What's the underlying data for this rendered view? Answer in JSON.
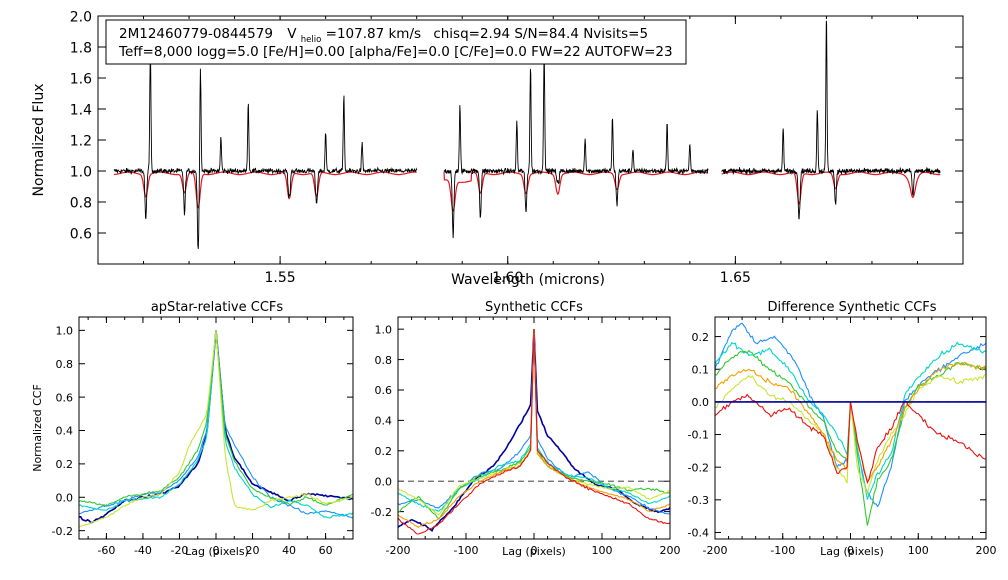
{
  "figure": {
    "header_line1": {
      "star": "2M12460779-0844579",
      "vhelio_label": "V",
      "vhelio_sub": "helio",
      "vhelio_value": "=107.87 km/s",
      "stats": "chisq=2.94  S/N=84.4  Nvisits=5"
    },
    "header_line2": "Teff=8,000 logg=5.0 [Fe/H]=0.00 [alpha/Fe]=0.0 [C/Fe]=0.0 FW=22 AUTOFW=23"
  },
  "colors": {
    "observed": "#000000",
    "model": "#e8141e",
    "visits": [
      "#0000a0",
      "#1e90ff",
      "#00d7c8",
      "#32c832",
      "#c8e632",
      "#f5a000",
      "#e81414"
    ],
    "dashed": "#666666"
  },
  "chart_data": [
    {
      "id": "spectrum",
      "type": "line",
      "title": "",
      "xlabel": "Wavelength (microns)",
      "ylabel": "Normalized Flux",
      "xlim": [
        1.51,
        1.7
      ],
      "ylim": [
        0.4,
        2.0
      ],
      "xticks": [
        1.55,
        1.6,
        1.65
      ],
      "xtick_labels": [
        "1.55",
        "1.60",
        "1.65"
      ],
      "yticks": [
        0.6,
        0.8,
        1.0,
        1.2,
        1.4,
        1.6,
        1.8,
        2.0
      ],
      "ytick_labels": [
        "0.6",
        "0.8",
        "1.0",
        "1.2",
        "1.4",
        "1.6",
        "1.8",
        "2.0"
      ],
      "chips": [
        [
          1.5135,
          1.58
        ],
        [
          1.586,
          1.644
        ],
        [
          1.647,
          1.695
        ]
      ],
      "series": [
        {
          "name": "observed",
          "baseline": 1.0
        },
        {
          "name": "model",
          "baseline": 0.985
        }
      ],
      "emission_lines": [
        [
          1.5215,
          1.8
        ],
        [
          1.5325,
          1.68
        ],
        [
          1.537,
          1.22
        ],
        [
          1.543,
          1.45
        ],
        [
          1.552,
          1.22
        ],
        [
          1.558,
          1.15
        ],
        [
          1.56,
          1.25
        ],
        [
          1.564,
          1.5
        ],
        [
          1.568,
          1.18
        ],
        [
          1.5895,
          1.42
        ],
        [
          1.602,
          1.32
        ],
        [
          1.605,
          1.68
        ],
        [
          1.608,
          1.8
        ],
        [
          1.611,
          1.23
        ],
        [
          1.617,
          1.22
        ],
        [
          1.623,
          1.35
        ],
        [
          1.6275,
          1.15
        ],
        [
          1.635,
          1.32
        ],
        [
          1.64,
          1.18
        ],
        [
          1.6605,
          1.28
        ],
        [
          1.664,
          1.15
        ],
        [
          1.668,
          1.4
        ],
        [
          1.67,
          2.0
        ]
      ],
      "absorption_lines": [
        [
          1.532,
          0.5
        ],
        [
          1.5205,
          0.68
        ],
        [
          1.529,
          0.72
        ],
        [
          1.552,
          0.62
        ],
        [
          1.558,
          0.65
        ],
        [
          1.588,
          0.57
        ],
        [
          1.594,
          0.7
        ],
        [
          1.604,
          0.73
        ],
        [
          1.611,
          0.72
        ],
        [
          1.624,
          0.78
        ],
        [
          1.664,
          0.55
        ],
        [
          1.672,
          0.78
        ],
        [
          1.689,
          0.84
        ]
      ]
    },
    {
      "id": "apstar_ccf",
      "type": "line",
      "title": "apStar-relative CCFs",
      "xlabel": "Lag (pixels)",
      "ylabel": "Normalized CCF",
      "xlim": [
        -75,
        75
      ],
      "ylim": [
        -0.25,
        1.08
      ],
      "xticks": [
        -60,
        -40,
        -20,
        0,
        20,
        40,
        60
      ],
      "xtick_labels": [
        "-60",
        "-40",
        "-20",
        "0",
        "20",
        "40",
        "60"
      ],
      "yticks": [
        -0.2,
        0.0,
        0.2,
        0.4,
        0.6,
        0.8,
        1.0
      ],
      "ytick_labels": [
        "-0.2",
        "0.0",
        "0.2",
        "0.4",
        "0.6",
        "0.8",
        "1.0"
      ],
      "series": [
        {
          "name": "visit 1",
          "color": "#0000a0",
          "x": [
            -75,
            -68,
            -60,
            -50,
            -40,
            -30,
            -20,
            -10,
            -5,
            0,
            5,
            10,
            20,
            30,
            40,
            50,
            60,
            75
          ],
          "y": [
            -0.12,
            -0.15,
            -0.1,
            -0.02,
            0.0,
            0.02,
            0.07,
            0.2,
            0.38,
            1.0,
            0.4,
            0.24,
            0.08,
            0.03,
            -0.02,
            0.02,
            0.01,
            -0.01
          ]
        },
        {
          "name": "visit 2",
          "color": "#1e90ff",
          "x": [
            -75,
            -60,
            -50,
            -40,
            -30,
            -20,
            -10,
            -5,
            0,
            5,
            10,
            20,
            30,
            40,
            50,
            60,
            75
          ],
          "y": [
            -0.1,
            -0.05,
            -0.02,
            0.02,
            0.03,
            0.1,
            0.24,
            0.4,
            1.0,
            0.42,
            0.32,
            0.12,
            0.0,
            -0.05,
            -0.1,
            -0.08,
            -0.12
          ]
        },
        {
          "name": "visit 3",
          "color": "#00d7c8",
          "x": [
            -75,
            -60,
            -50,
            -40,
            -30,
            -20,
            -10,
            -5,
            0,
            5,
            10,
            20,
            30,
            40,
            50,
            60,
            75
          ],
          "y": [
            -0.05,
            -0.08,
            -0.02,
            -0.01,
            0.0,
            0.08,
            0.22,
            0.36,
            1.0,
            0.34,
            0.18,
            0.02,
            -0.06,
            -0.02,
            -0.05,
            -0.12,
            -0.1
          ]
        },
        {
          "name": "visit 4",
          "color": "#32c832",
          "x": [
            -75,
            -60,
            -50,
            -40,
            -30,
            -20,
            -10,
            -5,
            0,
            5,
            10,
            20,
            30,
            40,
            50,
            60,
            75
          ],
          "y": [
            -0.02,
            -0.05,
            0.0,
            0.02,
            0.04,
            0.12,
            0.28,
            0.45,
            1.0,
            0.38,
            0.22,
            0.05,
            0.0,
            -0.04,
            0.0,
            -0.05,
            0.02
          ]
        },
        {
          "name": "visit 5",
          "color": "#c8e632",
          "x": [
            -75,
            -60,
            -50,
            -40,
            -30,
            -20,
            -15,
            -10,
            -5,
            0,
            5,
            10,
            20,
            30,
            40,
            50,
            60,
            75
          ],
          "y": [
            -0.18,
            -0.12,
            -0.05,
            0.0,
            0.02,
            0.15,
            0.3,
            0.4,
            0.5,
            1.0,
            0.25,
            -0.05,
            -0.08,
            -0.02,
            0.0,
            0.02,
            -0.04,
            0.0
          ]
        }
      ]
    },
    {
      "id": "synthetic_ccf",
      "type": "line",
      "title": "Synthetic CCFs",
      "xlabel": "Lag (pixels)",
      "ylabel": "",
      "xlim": [
        -200,
        200
      ],
      "ylim": [
        -0.38,
        1.08
      ],
      "xticks": [
        -200,
        -100,
        0,
        100,
        200
      ],
      "xtick_labels": [
        "-200",
        "-100",
        "0",
        "100",
        "200"
      ],
      "yticks": [
        -0.2,
        0.0,
        0.2,
        0.4,
        0.6,
        0.8,
        1.0
      ],
      "ytick_labels": [
        "-0.2",
        "0.0",
        "0.2",
        "0.4",
        "0.6",
        "0.8",
        "1.0"
      ],
      "reference_line": 0.0,
      "series": [
        {
          "name": "visit 1",
          "color": "#0000a0",
          "x": [
            -200,
            -180,
            -150,
            -120,
            -90,
            -60,
            -40,
            -20,
            -5,
            0,
            5,
            20,
            40,
            60,
            90,
            120,
            150,
            180,
            200
          ],
          "y": [
            -0.3,
            -0.25,
            -0.32,
            -0.18,
            0.0,
            0.1,
            0.22,
            0.38,
            0.5,
            1.0,
            0.46,
            0.3,
            0.2,
            0.08,
            -0.02,
            -0.05,
            -0.15,
            -0.2,
            -0.18
          ]
        },
        {
          "name": "visit 2",
          "color": "#1e90ff",
          "x": [
            -200,
            -170,
            -140,
            -110,
            -80,
            -50,
            -20,
            -5,
            0,
            5,
            20,
            50,
            80,
            110,
            140,
            170,
            200
          ],
          "y": [
            -0.15,
            -0.12,
            -0.18,
            -0.05,
            0.05,
            0.08,
            0.2,
            0.3,
            1.0,
            0.28,
            0.15,
            0.02,
            0.06,
            -0.05,
            -0.1,
            -0.18,
            -0.22
          ]
        },
        {
          "name": "visit 3",
          "color": "#00d7c8",
          "x": [
            -200,
            -170,
            -140,
            -110,
            -80,
            -50,
            -20,
            -5,
            0,
            5,
            20,
            50,
            80,
            110,
            140,
            170,
            200
          ],
          "y": [
            -0.08,
            -0.15,
            -0.2,
            -0.05,
            0.02,
            0.1,
            0.14,
            0.24,
            1.0,
            0.22,
            0.12,
            0.04,
            0.02,
            -0.04,
            -0.08,
            -0.15,
            -0.1
          ]
        },
        {
          "name": "visit 4",
          "color": "#32c832",
          "x": [
            -200,
            -170,
            -140,
            -110,
            -80,
            -50,
            -20,
            -5,
            0,
            5,
            20,
            50,
            80,
            110,
            140,
            170,
            200
          ],
          "y": [
            -0.2,
            -0.1,
            -0.25,
            -0.05,
            0.04,
            0.07,
            0.13,
            0.22,
            1.0,
            0.2,
            0.1,
            0.03,
            0.0,
            -0.02,
            -0.06,
            -0.05,
            -0.08
          ]
        },
        {
          "name": "visit 5",
          "color": "#c8e632",
          "x": [
            -200,
            -170,
            -140,
            -110,
            -80,
            -50,
            -20,
            -5,
            0,
            5,
            20,
            50,
            80,
            110,
            140,
            170,
            200
          ],
          "y": [
            -0.05,
            -0.12,
            -0.22,
            -0.03,
            0.02,
            0.06,
            0.12,
            0.2,
            1.0,
            0.18,
            0.1,
            0.02,
            -0.02,
            -0.05,
            -0.04,
            -0.12,
            -0.06
          ]
        },
        {
          "name": "visit 6",
          "color": "#f5a000",
          "x": [
            -200,
            -170,
            -140,
            -110,
            -80,
            -50,
            -20,
            -5,
            0,
            5,
            20,
            50,
            80,
            110,
            140,
            170,
            200
          ],
          "y": [
            -0.22,
            -0.3,
            -0.25,
            -0.1,
            0.0,
            0.06,
            0.1,
            0.2,
            1.0,
            0.18,
            0.1,
            0.02,
            -0.04,
            -0.08,
            -0.12,
            -0.2,
            -0.15
          ]
        },
        {
          "name": "visit 7",
          "color": "#e81414",
          "x": [
            -200,
            -170,
            -140,
            -110,
            -80,
            -50,
            -20,
            -5,
            0,
            5,
            20,
            50,
            80,
            110,
            140,
            170,
            200
          ],
          "y": [
            -0.25,
            -0.35,
            -0.28,
            -0.15,
            -0.02,
            0.05,
            0.1,
            0.2,
            1.0,
            0.2,
            0.12,
            0.02,
            -0.05,
            -0.1,
            -0.15,
            -0.25,
            -0.28
          ]
        }
      ]
    },
    {
      "id": "difference_ccf",
      "type": "line",
      "title": "Difference Synthetic CCFs",
      "xlabel": "Lag (pixels)",
      "ylabel": "",
      "xlim": [
        -200,
        200
      ],
      "ylim": [
        -0.42,
        0.26
      ],
      "xticks": [
        -200,
        -100,
        0,
        100,
        200
      ],
      "xtick_labels": [
        "-200",
        "-100",
        "0",
        "100",
        "200"
      ],
      "yticks": [
        -0.4,
        -0.3,
        -0.2,
        -0.1,
        0.0,
        0.1,
        0.2
      ],
      "ytick_labels": [
        "-0.4",
        "-0.3",
        "-0.2",
        "-0.1",
        "0.0",
        "0.1",
        "0.2"
      ],
      "reference_line": 0.0,
      "series": [
        {
          "name": "visit 1",
          "color": "#1e90ff",
          "x": [
            -200,
            -175,
            -160,
            -140,
            -110,
            -80,
            -60,
            -40,
            -20,
            -5,
            0,
            10,
            25,
            40,
            60,
            80,
            100,
            130,
            160,
            200
          ],
          "y": [
            0.1,
            0.22,
            0.24,
            0.18,
            0.2,
            0.12,
            0.02,
            -0.05,
            -0.2,
            -0.18,
            0.0,
            -0.15,
            -0.28,
            -0.32,
            -0.2,
            0.0,
            0.05,
            0.1,
            0.14,
            0.18
          ]
        },
        {
          "name": "visit 2",
          "color": "#00d7c8",
          "x": [
            -200,
            -175,
            -150,
            -120,
            -90,
            -60,
            -40,
            -20,
            -5,
            0,
            10,
            25,
            40,
            60,
            80,
            100,
            130,
            160,
            200
          ],
          "y": [
            0.12,
            0.18,
            0.14,
            0.16,
            0.1,
            0.0,
            -0.04,
            -0.1,
            -0.16,
            0.0,
            -0.14,
            -0.3,
            -0.22,
            -0.16,
            0.02,
            0.08,
            0.14,
            0.18,
            0.15
          ]
        },
        {
          "name": "visit 3",
          "color": "#32c832",
          "x": [
            -200,
            -175,
            -150,
            -120,
            -90,
            -60,
            -40,
            -20,
            -5,
            0,
            10,
            25,
            40,
            60,
            80,
            100,
            130,
            160,
            200
          ],
          "y": [
            0.08,
            0.14,
            0.16,
            0.1,
            0.06,
            -0.02,
            -0.06,
            -0.15,
            -0.18,
            0.0,
            -0.16,
            -0.38,
            -0.24,
            -0.18,
            -0.02,
            0.05,
            0.08,
            0.12,
            0.1
          ]
        },
        {
          "name": "visit 4",
          "color": "#c8e632",
          "x": [
            -200,
            -175,
            -150,
            -120,
            -90,
            -60,
            -40,
            -20,
            -5,
            0,
            10,
            25,
            40,
            60,
            80,
            100,
            130,
            160,
            200
          ],
          "y": [
            -0.02,
            0.04,
            0.08,
            0.02,
            0.0,
            -0.06,
            -0.1,
            -0.2,
            -0.25,
            0.0,
            -0.2,
            -0.28,
            -0.18,
            -0.1,
            -0.04,
            0.04,
            0.08,
            0.06,
            0.08
          ]
        },
        {
          "name": "visit 5",
          "color": "#f5a000",
          "x": [
            -200,
            -175,
            -150,
            -120,
            -90,
            -60,
            -40,
            -20,
            -5,
            0,
            10,
            25,
            40,
            60,
            80,
            100,
            130,
            160,
            200
          ],
          "y": [
            0.04,
            0.08,
            0.1,
            0.06,
            0.04,
            -0.04,
            -0.1,
            -0.18,
            -0.2,
            0.0,
            -0.12,
            -0.24,
            -0.2,
            -0.12,
            -0.02,
            0.04,
            0.1,
            0.12,
            0.1
          ]
        },
        {
          "name": "visit 6",
          "color": "#e81414",
          "x": [
            -200,
            -175,
            -150,
            -120,
            -90,
            -60,
            -40,
            -20,
            -5,
            0,
            10,
            25,
            40,
            60,
            80,
            100,
            130,
            160,
            200
          ],
          "y": [
            -0.04,
            0.0,
            0.02,
            -0.04,
            -0.02,
            -0.08,
            -0.1,
            -0.22,
            -0.2,
            0.0,
            -0.12,
            -0.25,
            -0.14,
            -0.08,
            0.0,
            -0.04,
            -0.1,
            -0.12,
            -0.18
          ]
        },
        {
          "name": "visit 7",
          "color": "#0000a0",
          "x": [
            -200,
            200
          ],
          "y": [
            0.0,
            0.0
          ]
        }
      ]
    }
  ]
}
